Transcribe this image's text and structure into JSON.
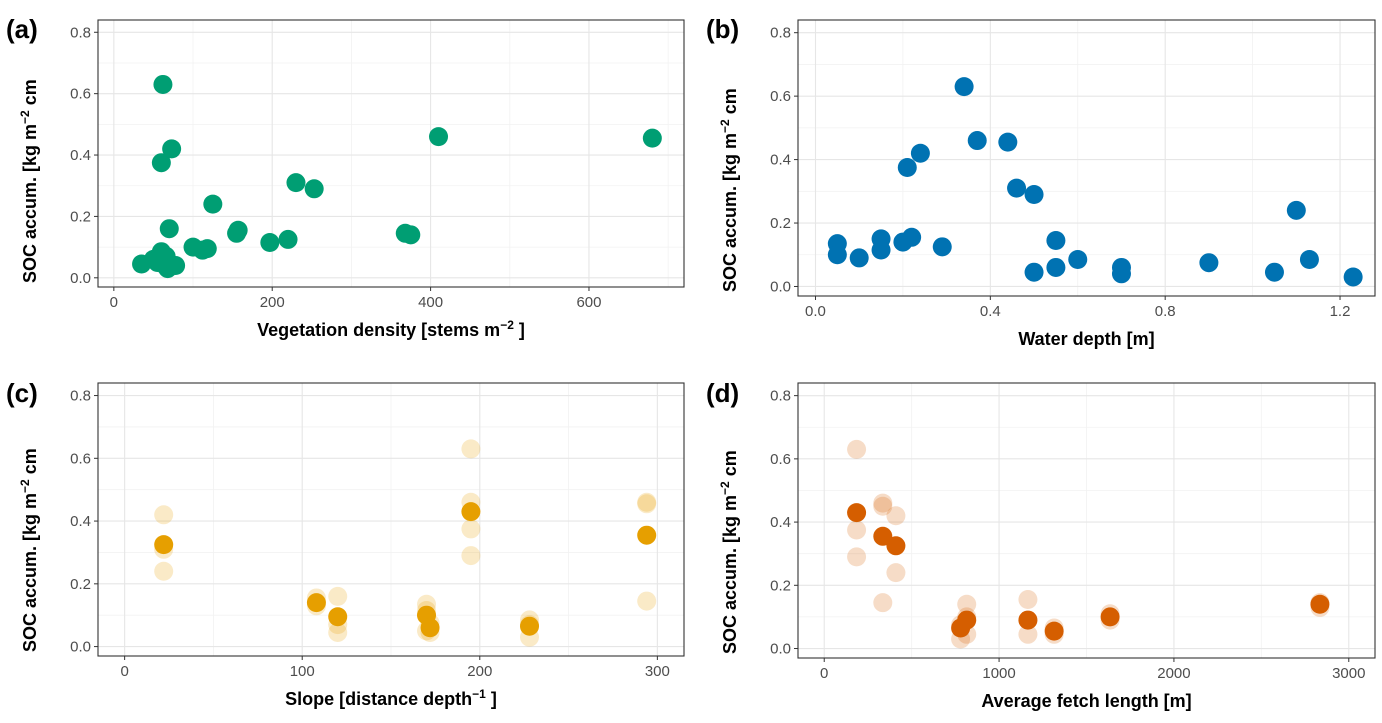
{
  "chart_data": [
    {
      "type": "scatter",
      "panel_label": "(a)",
      "xlabel": "Vegetation density [stems m",
      "xlabel_sup": "−2",
      "xlabel_tail": " ]",
      "ylabel": "SOC accum.  [kg m",
      "ylabel_sup": "−2",
      "ylabel_tail": " cm",
      "xlim": [
        -20,
        720
      ],
      "ylim": [
        -0.03,
        0.84
      ],
      "xticks": [
        0,
        200,
        400,
        600
      ],
      "xtick_labels": [
        "0",
        "200",
        "400",
        "600"
      ],
      "yticks": [
        0,
        0.2,
        0.4,
        0.6,
        0.8
      ],
      "ytick_labels": [
        "0.0",
        "0.2",
        "0.4",
        "0.6",
        "0.8"
      ],
      "grid": true,
      "color": "#009E73",
      "series": [
        {
          "points": [
            [
              35,
              0.045
            ],
            [
              50,
              0.06
            ],
            [
              55,
              0.05
            ],
            [
              60,
              0.085
            ],
            [
              60,
              0.375
            ],
            [
              62,
              0.63
            ],
            [
              65,
              0.04
            ],
            [
              66,
              0.07
            ],
            [
              68,
              0.03
            ],
            [
              70,
              0.16
            ],
            [
              73,
              0.42
            ],
            [
              78,
              0.04
            ],
            [
              100,
              0.1
            ],
            [
              112,
              0.09
            ],
            [
              118,
              0.095
            ],
            [
              125,
              0.24
            ],
            [
              155,
              0.145
            ],
            [
              157,
              0.155
            ],
            [
              197,
              0.115
            ],
            [
              220,
              0.125
            ],
            [
              230,
              0.31
            ],
            [
              253,
              0.29
            ],
            [
              368,
              0.145
            ],
            [
              375,
              0.14
            ],
            [
              410,
              0.46
            ],
            [
              680,
              0.455
            ]
          ]
        }
      ]
    },
    {
      "type": "scatter",
      "panel_label": "(b)",
      "xlabel": "Water depth [m]",
      "ylabel": "SOC accum.  [kg m",
      "ylabel_sup": "−2",
      "ylabel_tail": " cm",
      "xlim": [
        -0.04,
        1.28
      ],
      "ylim": [
        -0.03,
        0.84
      ],
      "xticks": [
        0.0,
        0.4,
        0.8,
        1.2
      ],
      "xtick_labels": [
        "0.0",
        "0.4",
        "0.8",
        "1.2"
      ],
      "yticks": [
        0,
        0.2,
        0.4,
        0.6,
        0.8
      ],
      "ytick_labels": [
        "0.0",
        "0.2",
        "0.4",
        "0.6",
        "0.8"
      ],
      "grid": true,
      "color": "#0072B2",
      "series": [
        {
          "points": [
            [
              0.05,
              0.135
            ],
            [
              0.05,
              0.1
            ],
            [
              0.1,
              0.09
            ],
            [
              0.15,
              0.15
            ],
            [
              0.15,
              0.115
            ],
            [
              0.2,
              0.14
            ],
            [
              0.21,
              0.375
            ],
            [
              0.22,
              0.155
            ],
            [
              0.24,
              0.42
            ],
            [
              0.29,
              0.125
            ],
            [
              0.34,
              0.63
            ],
            [
              0.37,
              0.46
            ],
            [
              0.44,
              0.455
            ],
            [
              0.46,
              0.31
            ],
            [
              0.5,
              0.29
            ],
            [
              0.5,
              0.045
            ],
            [
              0.55,
              0.145
            ],
            [
              0.55,
              0.06
            ],
            [
              0.6,
              0.085
            ],
            [
              0.7,
              0.06
            ],
            [
              0.7,
              0.04
            ],
            [
              0.9,
              0.075
            ],
            [
              1.05,
              0.045
            ],
            [
              1.1,
              0.24
            ],
            [
              1.13,
              0.085
            ],
            [
              1.23,
              0.03
            ]
          ]
        }
      ]
    },
    {
      "type": "scatter",
      "panel_label": "(c)",
      "xlabel": "Slope [distance depth",
      "xlabel_sup": "−1",
      "xlabel_tail": " ]",
      "ylabel": "SOC accum.  [kg m",
      "ylabel_sup": "−2",
      "ylabel_tail": " cm",
      "xlim": [
        -15,
        315
      ],
      "ylim": [
        -0.03,
        0.84
      ],
      "xticks": [
        0,
        100,
        200,
        300
      ],
      "xtick_labels": [
        "0",
        "100",
        "200",
        "300"
      ],
      "yticks": [
        0,
        0.2,
        0.4,
        0.6,
        0.8
      ],
      "ytick_labels": [
        "0.0",
        "0.2",
        "0.4",
        "0.6",
        "0.8"
      ],
      "grid": true,
      "color": "#E69F00",
      "series": [
        {
          "kind": "individual",
          "opacity": 0.22,
          "points": [
            [
              22,
              0.42
            ],
            [
              22,
              0.31
            ],
            [
              22,
              0.24
            ],
            [
              108,
              0.155
            ],
            [
              108,
              0.13
            ],
            [
              120,
              0.16
            ],
            [
              120,
              0.07
            ],
            [
              120,
              0.045
            ],
            [
              170,
              0.135
            ],
            [
              170,
              0.115
            ],
            [
              170,
              0.1
            ],
            [
              170,
              0.05
            ],
            [
              172,
              0.075
            ],
            [
              172,
              0.045
            ],
            [
              195,
              0.63
            ],
            [
              195,
              0.46
            ],
            [
              195,
              0.375
            ],
            [
              195,
              0.29
            ],
            [
              228,
              0.085
            ],
            [
              228,
              0.07
            ],
            [
              228,
              0.03
            ],
            [
              294,
              0.46
            ],
            [
              294,
              0.455
            ],
            [
              294,
              0.145
            ]
          ]
        },
        {
          "kind": "mean",
          "opacity": 1.0,
          "points": [
            [
              22,
              0.325
            ],
            [
              108,
              0.14
            ],
            [
              120,
              0.095
            ],
            [
              170,
              0.1
            ],
            [
              172,
              0.06
            ],
            [
              195,
              0.43
            ],
            [
              228,
              0.065
            ],
            [
              294,
              0.355
            ]
          ]
        }
      ]
    },
    {
      "type": "scatter",
      "panel_label": "(d)",
      "xlabel": "Average fetch length [m]",
      "ylabel": "SOC accum.  [kg m",
      "ylabel_sup": "−2",
      "ylabel_tail": " cm",
      "xlim": [
        -150,
        3150
      ],
      "ylim": [
        -0.03,
        0.84
      ],
      "xticks": [
        0,
        1000,
        2000,
        3000
      ],
      "xtick_labels": [
        "0",
        "1000",
        "2000",
        "3000"
      ],
      "yticks": [
        0,
        0.2,
        0.4,
        0.6,
        0.8
      ],
      "ytick_labels": [
        "0.0",
        "0.2",
        "0.4",
        "0.6",
        "0.8"
      ],
      "grid": true,
      "color": "#D55E00",
      "series": [
        {
          "kind": "individual",
          "opacity": 0.22,
          "points": [
            [
              185,
              0.63
            ],
            [
              185,
              0.375
            ],
            [
              185,
              0.29
            ],
            [
              335,
              0.46
            ],
            [
              335,
              0.45
            ],
            [
              335,
              0.145
            ],
            [
              410,
              0.42
            ],
            [
              410,
              0.24
            ],
            [
              780,
              0.075
            ],
            [
              780,
              0.03
            ],
            [
              815,
              0.14
            ],
            [
              815,
              0.1
            ],
            [
              815,
              0.045
            ],
            [
              1165,
              0.155
            ],
            [
              1165,
              0.09
            ],
            [
              1165,
              0.045
            ],
            [
              1315,
              0.065
            ],
            [
              1315,
              0.045
            ],
            [
              1635,
              0.11
            ],
            [
              1635,
              0.09
            ],
            [
              2835,
              0.145
            ],
            [
              2835,
              0.13
            ]
          ]
        },
        {
          "kind": "mean",
          "opacity": 1.0,
          "points": [
            [
              185,
              0.43
            ],
            [
              335,
              0.355
            ],
            [
              410,
              0.325
            ],
            [
              780,
              0.065
            ],
            [
              815,
              0.09
            ],
            [
              1165,
              0.09
            ],
            [
              1315,
              0.055
            ],
            [
              1635,
              0.1
            ],
            [
              2835,
              0.14
            ]
          ]
        }
      ]
    }
  ]
}
